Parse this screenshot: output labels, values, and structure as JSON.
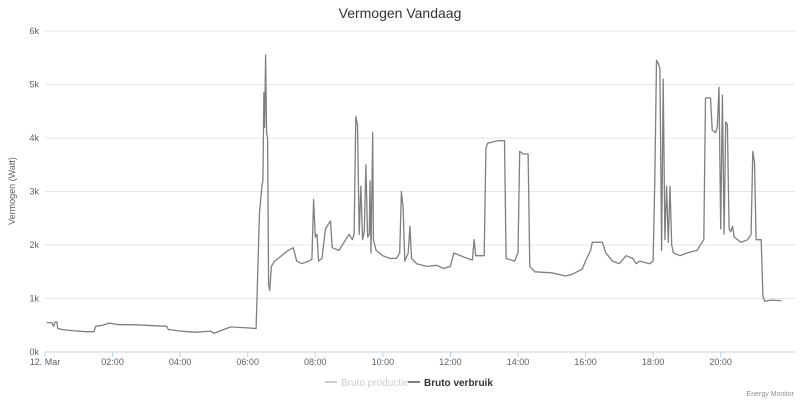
{
  "chart_data": {
    "type": "line",
    "title": "Vermogen Vandaag",
    "ylabel": "Vermogen (Watt)",
    "xlabel": "",
    "x_start_label": "12. Mar",
    "x_ticks": [
      "02:00",
      "04:00",
      "06:00",
      "08:00",
      "10:00",
      "12:00",
      "14:00",
      "16:00",
      "18:00",
      "20:00"
    ],
    "y_ticks": [
      "0k",
      "1k",
      "2k",
      "3k",
      "4k",
      "5k",
      "6k"
    ],
    "ylim": [
      0,
      6000
    ],
    "xlim_hours": [
      0,
      22.2
    ],
    "grid": true,
    "legend_position": "bottom",
    "credit": "Energy Monitor",
    "series": [
      {
        "name": "Bruto productie",
        "visible": false,
        "color": "#cccccc",
        "points": []
      },
      {
        "name": "Bruto verbruik",
        "visible": true,
        "color": "#7f7f7f",
        "points": [
          [
            0.05,
            550
          ],
          [
            0.2,
            550
          ],
          [
            0.25,
            480
          ],
          [
            0.3,
            560
          ],
          [
            0.35,
            560
          ],
          [
            0.38,
            440
          ],
          [
            0.5,
            420
          ],
          [
            0.8,
            400
          ],
          [
            1.2,
            380
          ],
          [
            1.45,
            380
          ],
          [
            1.5,
            480
          ],
          [
            1.7,
            500
          ],
          [
            1.9,
            540
          ],
          [
            2.2,
            510
          ],
          [
            2.6,
            510
          ],
          [
            3.0,
            500
          ],
          [
            3.3,
            490
          ],
          [
            3.6,
            480
          ],
          [
            3.65,
            420
          ],
          [
            3.9,
            400
          ],
          [
            4.2,
            380
          ],
          [
            4.5,
            370
          ],
          [
            4.9,
            390
          ],
          [
            5.0,
            350
          ],
          [
            5.2,
            400
          ],
          [
            5.5,
            470
          ],
          [
            5.7,
            460
          ],
          [
            6.0,
            450
          ],
          [
            6.25,
            440
          ],
          [
            6.35,
            2600
          ],
          [
            6.42,
            3100
          ],
          [
            6.45,
            3200
          ],
          [
            6.48,
            4850
          ],
          [
            6.5,
            4200
          ],
          [
            6.53,
            5550
          ],
          [
            6.56,
            4100
          ],
          [
            6.59,
            4000
          ],
          [
            6.62,
            1250
          ],
          [
            6.65,
            1150
          ],
          [
            6.7,
            1600
          ],
          [
            6.8,
            1700
          ],
          [
            7.0,
            1800
          ],
          [
            7.2,
            1900
          ],
          [
            7.35,
            1950
          ],
          [
            7.45,
            1700
          ],
          [
            7.6,
            1650
          ],
          [
            7.8,
            1700
          ],
          [
            7.9,
            1730
          ],
          [
            7.95,
            2850
          ],
          [
            8.0,
            2150
          ],
          [
            8.05,
            2200
          ],
          [
            8.1,
            1700
          ],
          [
            8.2,
            1750
          ],
          [
            8.3,
            2300
          ],
          [
            8.45,
            2450
          ],
          [
            8.5,
            1950
          ],
          [
            8.7,
            1900
          ],
          [
            8.9,
            2100
          ],
          [
            9.0,
            2200
          ],
          [
            9.1,
            2100
          ],
          [
            9.15,
            2200
          ],
          [
            9.2,
            4400
          ],
          [
            9.25,
            4250
          ],
          [
            9.3,
            2200
          ],
          [
            9.35,
            3100
          ],
          [
            9.4,
            2100
          ],
          [
            9.45,
            2250
          ],
          [
            9.5,
            3500
          ],
          [
            9.55,
            2150
          ],
          [
            9.6,
            2200
          ],
          [
            9.62,
            3200
          ],
          [
            9.65,
            1850
          ],
          [
            9.7,
            4100
          ],
          [
            9.72,
            2100
          ],
          [
            9.8,
            1900
          ],
          [
            9.9,
            1850
          ],
          [
            10.0,
            1800
          ],
          [
            10.2,
            1750
          ],
          [
            10.4,
            1750
          ],
          [
            10.5,
            1850
          ],
          [
            10.55,
            3000
          ],
          [
            10.6,
            2700
          ],
          [
            10.65,
            1700
          ],
          [
            10.75,
            1850
          ],
          [
            10.8,
            2350
          ],
          [
            10.85,
            1750
          ],
          [
            11.0,
            1650
          ],
          [
            11.3,
            1600
          ],
          [
            11.6,
            1620
          ],
          [
            11.8,
            1560
          ],
          [
            12.0,
            1600
          ],
          [
            12.1,
            1850
          ],
          [
            12.3,
            1800
          ],
          [
            12.5,
            1750
          ],
          [
            12.65,
            1720
          ],
          [
            12.7,
            2100
          ],
          [
            12.75,
            1800
          ],
          [
            13.0,
            1800
          ],
          [
            13.05,
            3800
          ],
          [
            13.1,
            3900
          ],
          [
            13.4,
            3950
          ],
          [
            13.6,
            3950
          ],
          [
            13.65,
            1750
          ],
          [
            13.9,
            1700
          ],
          [
            14.0,
            1850
          ],
          [
            14.05,
            3750
          ],
          [
            14.15,
            3700
          ],
          [
            14.3,
            3700
          ],
          [
            14.35,
            1600
          ],
          [
            14.5,
            1500
          ],
          [
            15.0,
            1480
          ],
          [
            15.4,
            1420
          ],
          [
            15.6,
            1450
          ],
          [
            15.9,
            1550
          ],
          [
            16.0,
            1700
          ],
          [
            16.15,
            1900
          ],
          [
            16.2,
            2050
          ],
          [
            16.5,
            2050
          ],
          [
            16.6,
            1850
          ],
          [
            16.8,
            1700
          ],
          [
            17.0,
            1650
          ],
          [
            17.2,
            1800
          ],
          [
            17.4,
            1750
          ],
          [
            17.5,
            1650
          ],
          [
            17.6,
            1700
          ],
          [
            17.9,
            1650
          ],
          [
            18.0,
            1700
          ],
          [
            18.05,
            3200
          ],
          [
            18.1,
            5450
          ],
          [
            18.15,
            5400
          ],
          [
            18.2,
            5300
          ],
          [
            18.25,
            1900
          ],
          [
            18.3,
            5100
          ],
          [
            18.35,
            2100
          ],
          [
            18.4,
            3100
          ],
          [
            18.45,
            2050
          ],
          [
            18.5,
            3100
          ],
          [
            18.55,
            2000
          ],
          [
            18.6,
            1850
          ],
          [
            18.8,
            1800
          ],
          [
            19.0,
            1850
          ],
          [
            19.3,
            1900
          ],
          [
            19.5,
            2100
          ],
          [
            19.55,
            4750
          ],
          [
            19.7,
            4750
          ],
          [
            19.75,
            4150
          ],
          [
            19.85,
            4100
          ],
          [
            19.9,
            4200
          ],
          [
            19.95,
            4950
          ],
          [
            20.0,
            2300
          ],
          [
            20.05,
            4800
          ],
          [
            20.1,
            2200
          ],
          [
            20.15,
            4300
          ],
          [
            20.2,
            4250
          ],
          [
            20.25,
            2300
          ],
          [
            20.3,
            2250
          ],
          [
            20.35,
            2350
          ],
          [
            20.4,
            2150
          ],
          [
            20.6,
            2050
          ],
          [
            20.8,
            2100
          ],
          [
            20.9,
            2200
          ],
          [
            20.95,
            3750
          ],
          [
            21.0,
            3550
          ],
          [
            21.05,
            2100
          ],
          [
            21.2,
            2100
          ],
          [
            21.25,
            1050
          ],
          [
            21.3,
            950
          ],
          [
            21.5,
            970
          ],
          [
            21.8,
            960
          ]
        ]
      }
    ]
  }
}
